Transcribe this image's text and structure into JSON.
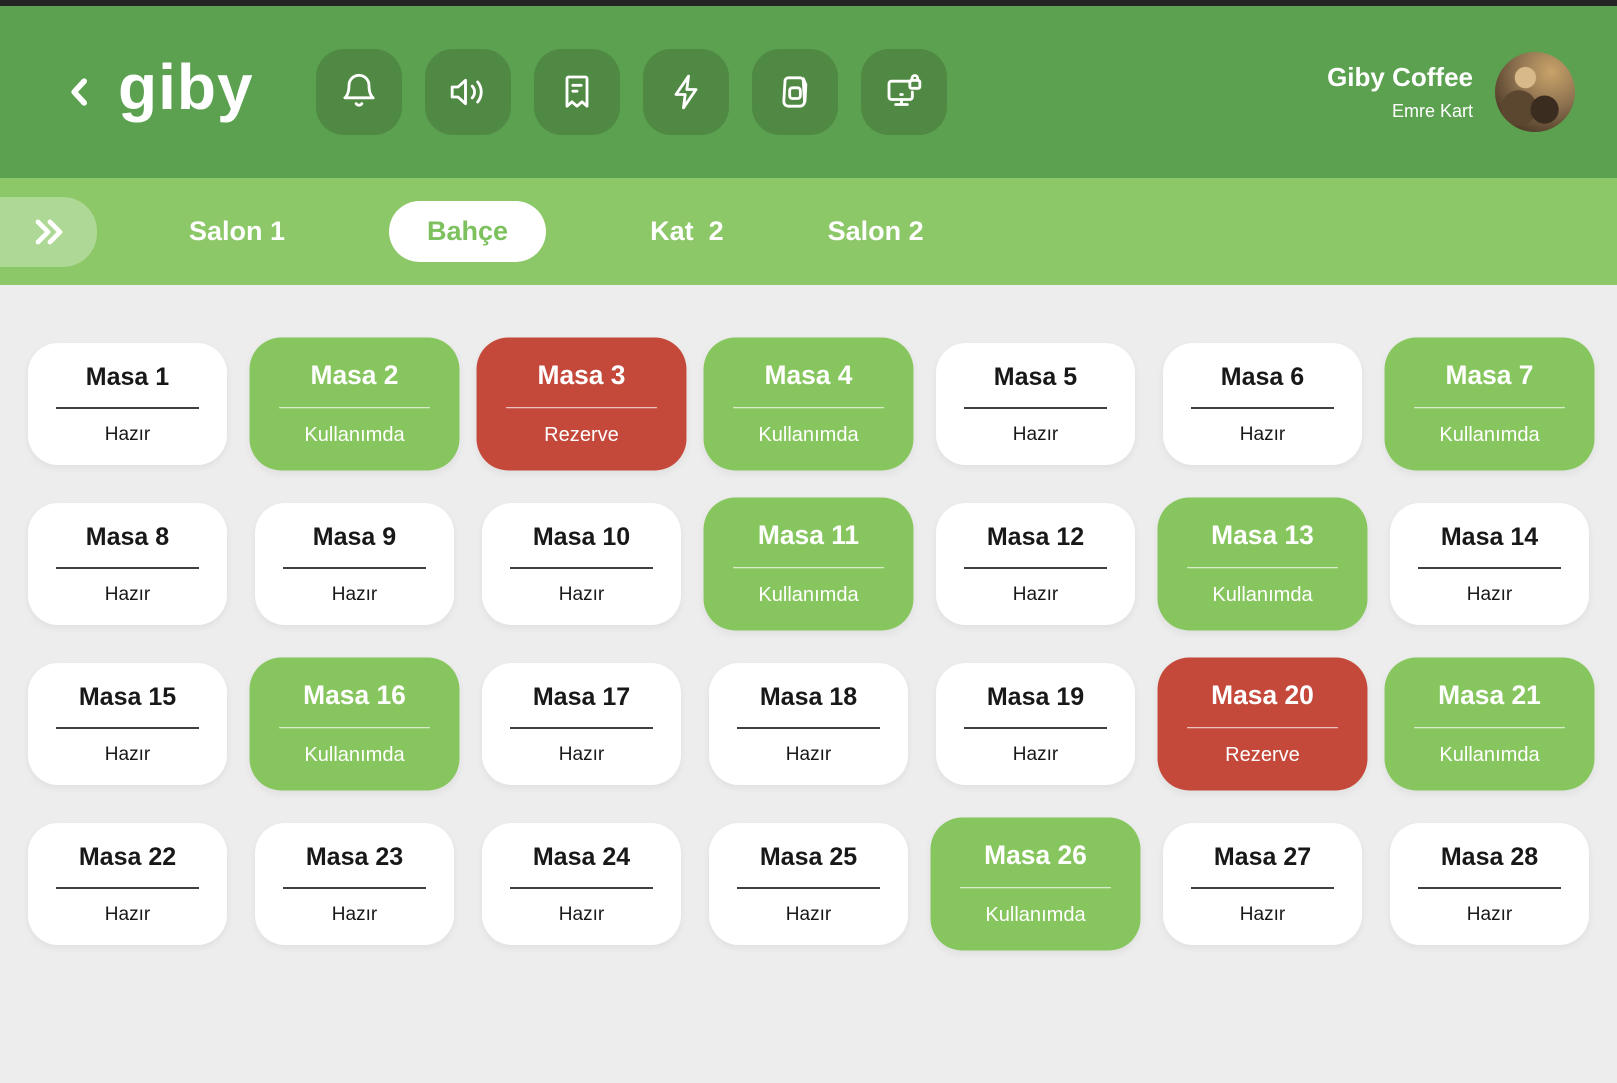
{
  "header": {
    "logo": "giby",
    "store_name": "Giby Coffee",
    "user_name": "Emre Kart",
    "toolbar_icons": [
      "bell-icon",
      "volume-icon",
      "receipt-icon",
      "lightning-icon",
      "bag-icon",
      "screen-lock-icon"
    ]
  },
  "tabs": {
    "expand_icon": "double-chevron-right",
    "items": [
      {
        "label": "Salon 1",
        "active": false
      },
      {
        "label": "Bahçe",
        "active": true
      },
      {
        "label": "Kat  2",
        "active": false
      },
      {
        "label": "Salon 2",
        "active": false
      }
    ]
  },
  "statuses": {
    "ready": "Hazır",
    "inuse": "Kullanımda",
    "reserved": "Rezerve"
  },
  "tables": [
    {
      "name": "Masa 1",
      "status": "Hazır",
      "state": "ready"
    },
    {
      "name": "Masa 2",
      "status": "Kullanımda",
      "state": "inuse"
    },
    {
      "name": "Masa 3",
      "status": "Rezerve",
      "state": "reserved"
    },
    {
      "name": "Masa 4",
      "status": "Kullanımda",
      "state": "inuse"
    },
    {
      "name": "Masa 5",
      "status": "Hazır",
      "state": "ready"
    },
    {
      "name": "Masa 6",
      "status": "Hazır",
      "state": "ready"
    },
    {
      "name": "Masa 7",
      "status": "Kullanımda",
      "state": "inuse"
    },
    {
      "name": "Masa 8",
      "status": "Hazır",
      "state": "ready"
    },
    {
      "name": "Masa 9",
      "status": "Hazır",
      "state": "ready"
    },
    {
      "name": "Masa 10",
      "status": "Hazır",
      "state": "ready"
    },
    {
      "name": "Masa 11",
      "status": "Kullanımda",
      "state": "inuse"
    },
    {
      "name": "Masa 12",
      "status": "Hazır",
      "state": "ready"
    },
    {
      "name": "Masa 13",
      "status": "Kullanımda",
      "state": "inuse"
    },
    {
      "name": "Masa 14",
      "status": "Hazır",
      "state": "ready"
    },
    {
      "name": "Masa 15",
      "status": "Hazır",
      "state": "ready"
    },
    {
      "name": "Masa 16",
      "status": "Kullanımda",
      "state": "inuse"
    },
    {
      "name": "Masa 17",
      "status": "Hazır",
      "state": "ready"
    },
    {
      "name": "Masa 18",
      "status": "Hazır",
      "state": "ready"
    },
    {
      "name": "Masa 19",
      "status": "Hazır",
      "state": "ready"
    },
    {
      "name": "Masa 20",
      "status": "Rezerve",
      "state": "reserved"
    },
    {
      "name": "Masa 21",
      "status": "Kullanımda",
      "state": "inuse"
    },
    {
      "name": "Masa 22",
      "status": "Hazır",
      "state": "ready"
    },
    {
      "name": "Masa 23",
      "status": "Hazır",
      "state": "ready"
    },
    {
      "name": "Masa 24",
      "status": "Hazır",
      "state": "ready"
    },
    {
      "name": "Masa 25",
      "status": "Hazır",
      "state": "ready"
    },
    {
      "name": "Masa 26",
      "status": "Kullanımda",
      "state": "inuse"
    },
    {
      "name": "Masa 27",
      "status": "Hazır",
      "state": "ready"
    },
    {
      "name": "Masa 28",
      "status": "Hazır",
      "state": "ready"
    }
  ],
  "colors": {
    "top_strip": "#242424",
    "header_bg": "#5ba150",
    "icon_button_bg": "#508943",
    "tabbar_bg": "#8cc768",
    "active_tab_text": "#7cc15e",
    "card_ready_bg": "#ffffff",
    "card_inuse_bg": "#87c65e",
    "card_reserved_bg": "#c4493b",
    "page_bg": "#ededed"
  }
}
